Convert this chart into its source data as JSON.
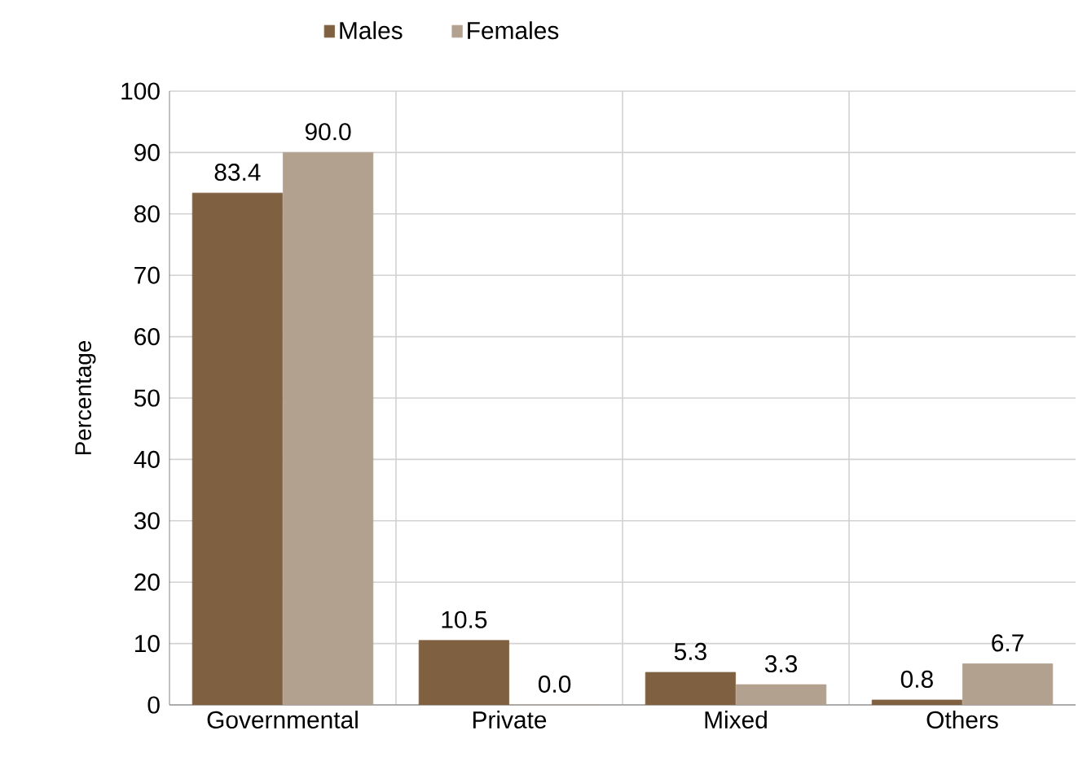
{
  "chart_data": {
    "type": "bar",
    "ylabel": "Percentage",
    "categories": [
      "Governmental",
      "Private",
      "Mixed",
      "Others"
    ],
    "series": [
      {
        "name": "Males",
        "color": "#7f6142",
        "values": [
          83.4,
          10.5,
          5.3,
          0.8
        ],
        "value_labels": [
          "83.4",
          "10.5",
          "5.3",
          "0.8"
        ]
      },
      {
        "name": "Females",
        "color": "#b3a18f",
        "values": [
          90.0,
          0.0,
          3.3,
          6.7
        ],
        "value_labels": [
          "90.0",
          "0.0",
          "3.3",
          "6.7"
        ]
      }
    ],
    "ylim": [
      0,
      100
    ],
    "yticks": [
      0,
      10,
      20,
      30,
      40,
      50,
      60,
      70,
      80,
      90,
      100
    ],
    "grid": true,
    "legend": "top"
  }
}
